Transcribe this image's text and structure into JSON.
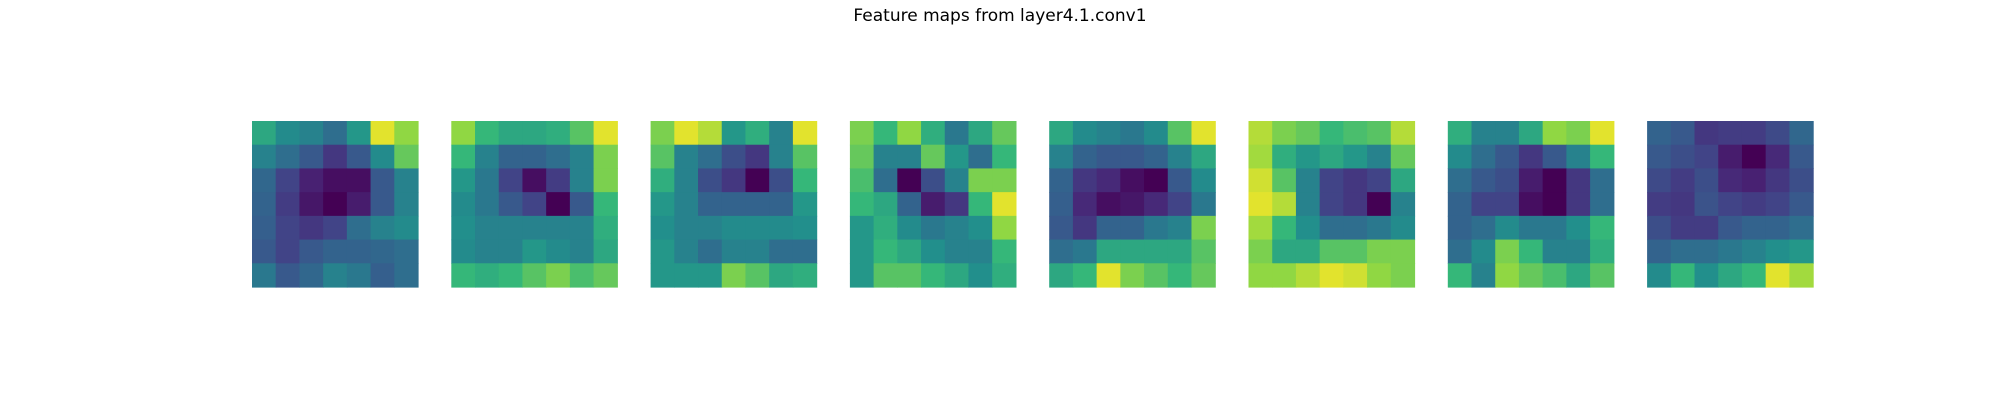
{
  "chart_data": {
    "type": "heatmap",
    "title": "Feature maps from layer4.1.conv1",
    "colormap": "viridis",
    "value_range": [
      0,
      1
    ],
    "axes_visible": false,
    "panels": [
      {
        "values": [
          [
            0.7,
            0.6,
            0.55,
            0.45,
            0.65,
            0.97,
            0.88
          ],
          [
            0.55,
            0.45,
            0.35,
            0.2,
            0.35,
            0.6,
            0.82
          ],
          [
            0.42,
            0.25,
            0.12,
            0.05,
            0.05,
            0.35,
            0.55
          ],
          [
            0.4,
            0.22,
            0.08,
            0.0,
            0.1,
            0.35,
            0.55
          ],
          [
            0.38,
            0.25,
            0.2,
            0.25,
            0.45,
            0.55,
            0.6
          ],
          [
            0.35,
            0.25,
            0.35,
            0.4,
            0.4,
            0.42,
            0.45
          ],
          [
            0.5,
            0.35,
            0.42,
            0.55,
            0.5,
            0.38,
            0.45
          ]
        ]
      },
      {
        "values": [
          [
            0.88,
            0.75,
            0.7,
            0.7,
            0.72,
            0.8,
            0.97
          ],
          [
            0.75,
            0.55,
            0.4,
            0.4,
            0.45,
            0.55,
            0.85
          ],
          [
            0.65,
            0.5,
            0.25,
            0.05,
            0.22,
            0.55,
            0.85
          ],
          [
            0.6,
            0.5,
            0.35,
            0.25,
            0.0,
            0.35,
            0.75
          ],
          [
            0.62,
            0.55,
            0.55,
            0.55,
            0.55,
            0.55,
            0.72
          ],
          [
            0.6,
            0.55,
            0.55,
            0.65,
            0.6,
            0.55,
            0.7
          ],
          [
            0.75,
            0.72,
            0.75,
            0.8,
            0.85,
            0.78,
            0.82
          ]
        ]
      },
      {
        "values": [
          [
            0.85,
            0.97,
            0.92,
            0.65,
            0.72,
            0.55,
            0.97
          ],
          [
            0.8,
            0.55,
            0.45,
            0.3,
            0.2,
            0.55,
            0.8
          ],
          [
            0.72,
            0.55,
            0.3,
            0.2,
            0.0,
            0.3,
            0.75
          ],
          [
            0.65,
            0.55,
            0.4,
            0.4,
            0.4,
            0.4,
            0.65
          ],
          [
            0.62,
            0.55,
            0.55,
            0.6,
            0.6,
            0.6,
            0.62
          ],
          [
            0.65,
            0.55,
            0.45,
            0.55,
            0.55,
            0.45,
            0.45
          ],
          [
            0.65,
            0.65,
            0.65,
            0.85,
            0.8,
            0.7,
            0.72
          ]
        ]
      },
      {
        "values": [
          [
            0.85,
            0.75,
            0.88,
            0.72,
            0.5,
            0.7,
            0.82
          ],
          [
            0.82,
            0.55,
            0.55,
            0.82,
            0.65,
            0.45,
            0.75
          ],
          [
            0.78,
            0.45,
            0.0,
            0.3,
            0.55,
            0.85,
            0.85
          ],
          [
            0.75,
            0.7,
            0.4,
            0.1,
            0.2,
            0.75,
            0.97
          ],
          [
            0.65,
            0.72,
            0.6,
            0.5,
            0.55,
            0.62,
            0.88
          ],
          [
            0.65,
            0.75,
            0.7,
            0.62,
            0.55,
            0.55,
            0.75
          ],
          [
            0.65,
            0.8,
            0.8,
            0.75,
            0.7,
            0.62,
            0.72
          ]
        ]
      },
      {
        "values": [
          [
            0.7,
            0.6,
            0.55,
            0.5,
            0.6,
            0.8,
            0.97
          ],
          [
            0.55,
            0.4,
            0.35,
            0.35,
            0.4,
            0.55,
            0.7
          ],
          [
            0.4,
            0.2,
            0.15,
            0.05,
            0.0,
            0.35,
            0.6
          ],
          [
            0.38,
            0.15,
            0.05,
            0.08,
            0.15,
            0.25,
            0.5
          ],
          [
            0.35,
            0.2,
            0.4,
            0.4,
            0.5,
            0.55,
            0.85
          ],
          [
            0.45,
            0.5,
            0.7,
            0.7,
            0.7,
            0.7,
            0.8
          ],
          [
            0.7,
            0.75,
            0.97,
            0.85,
            0.8,
            0.75,
            0.82
          ]
        ]
      },
      {
        "values": [
          [
            0.92,
            0.85,
            0.82,
            0.75,
            0.78,
            0.8,
            0.92
          ],
          [
            0.9,
            0.72,
            0.65,
            0.7,
            0.65,
            0.55,
            0.82
          ],
          [
            0.95,
            0.8,
            0.55,
            0.25,
            0.2,
            0.25,
            0.7
          ],
          [
            0.97,
            0.92,
            0.55,
            0.25,
            0.2,
            0.0,
            0.55
          ],
          [
            0.9,
            0.75,
            0.62,
            0.45,
            0.45,
            0.5,
            0.6
          ],
          [
            0.85,
            0.7,
            0.7,
            0.8,
            0.8,
            0.85,
            0.85
          ],
          [
            0.88,
            0.88,
            0.92,
            0.97,
            0.95,
            0.88,
            0.85
          ]
        ]
      },
      {
        "values": [
          [
            0.72,
            0.55,
            0.55,
            0.7,
            0.88,
            0.85,
            0.97
          ],
          [
            0.6,
            0.45,
            0.35,
            0.2,
            0.35,
            0.55,
            0.75
          ],
          [
            0.45,
            0.35,
            0.3,
            0.1,
            0.0,
            0.2,
            0.45
          ],
          [
            0.4,
            0.25,
            0.25,
            0.05,
            0.0,
            0.2,
            0.45
          ],
          [
            0.4,
            0.45,
            0.6,
            0.5,
            0.5,
            0.62,
            0.75
          ],
          [
            0.45,
            0.6,
            0.85,
            0.75,
            0.55,
            0.55,
            0.72
          ],
          [
            0.75,
            0.55,
            0.88,
            0.82,
            0.78,
            0.7,
            0.8
          ]
        ]
      },
      {
        "values": [
          [
            0.4,
            0.35,
            0.2,
            0.22,
            0.22,
            0.28,
            0.42
          ],
          [
            0.35,
            0.3,
            0.25,
            0.1,
            0.0,
            0.15,
            0.35
          ],
          [
            0.28,
            0.22,
            0.3,
            0.15,
            0.12,
            0.2,
            0.3
          ],
          [
            0.22,
            0.2,
            0.32,
            0.25,
            0.22,
            0.25,
            0.35
          ],
          [
            0.3,
            0.22,
            0.22,
            0.35,
            0.4,
            0.4,
            0.45
          ],
          [
            0.4,
            0.45,
            0.45,
            0.5,
            0.55,
            0.62,
            0.65
          ],
          [
            0.6,
            0.75,
            0.62,
            0.7,
            0.75,
            0.97,
            0.9
          ]
        ]
      }
    ]
  }
}
